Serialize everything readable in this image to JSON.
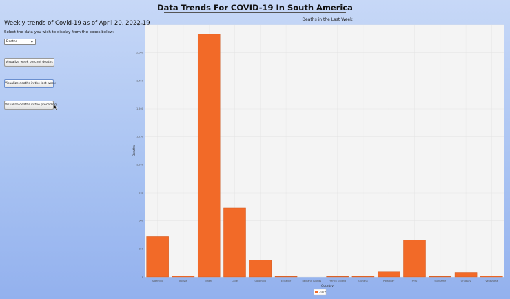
{
  "page": {
    "title": "Data Trends For COVID-19 In South America",
    "subtitle": "Weekly trends of Covid-19 as of April 20, 2022-19",
    "instructions": "Select the data you wish to display from the boxes below:"
  },
  "controls": {
    "metric_select": {
      "value": "Deaths",
      "options": [
        "Deaths"
      ]
    },
    "buttons": [
      {
        "label": "Visualize week percent deaths"
      },
      {
        "label": "Visualize deaths in the last week"
      },
      {
        "label": "Visualize deaths in the preceding..."
      }
    ]
  },
  "colors": {
    "bar": "#f26a28",
    "bar_edge": "#c9531a",
    "plot_bg": "#f4f4f4",
    "grid": "#e2e2e2"
  },
  "chart_data": {
    "type": "bar",
    "title": "Deaths in the Last Week",
    "xlabel": "Country",
    "ylabel": "Deaths",
    "ylim": [
      0,
      2250
    ],
    "yticks": [
      0,
      250,
      500,
      750,
      1000,
      1250,
      1500,
      1750,
      2000,
      2250
    ],
    "ytick_labels": [
      "0",
      "250",
      "500",
      "750",
      "1,000",
      "1,250",
      "1,500",
      "1,750",
      "2,000",
      "2,250"
    ],
    "categories": [
      "Argentina",
      "Bolivia",
      "Brazil",
      "Chile",
      "Colombia",
      "Ecuador",
      "Falkland Islands",
      "French Guiana",
      "Guyana",
      "Paraguay",
      "Peru",
      "Suriname",
      "Uruguay",
      "Venezuela"
    ],
    "series": [
      {
        "name": "2022",
        "values": [
          360,
          8,
          2165,
          615,
          150,
          3,
          0,
          1,
          6,
          45,
          330,
          4,
          40,
          10
        ]
      }
    ],
    "grid": true,
    "legend": "bottom-center"
  }
}
